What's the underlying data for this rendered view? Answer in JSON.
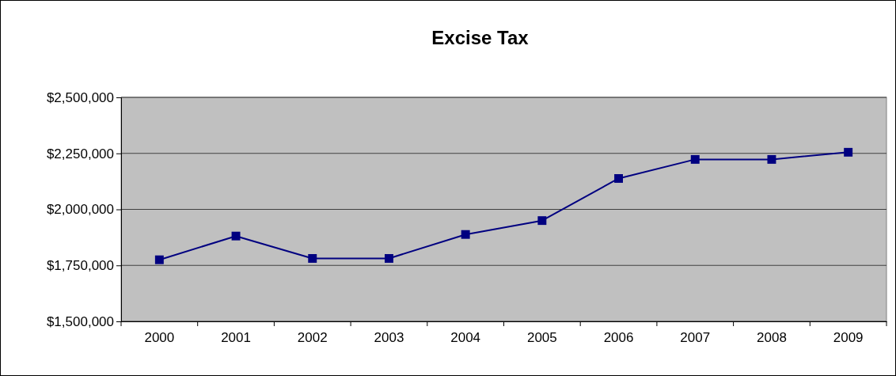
{
  "chart_data": {
    "type": "line",
    "title": "Excise Tax",
    "categories": [
      "2000",
      "2001",
      "2002",
      "2003",
      "2004",
      "2005",
      "2006",
      "2007",
      "2008",
      "2009"
    ],
    "series": [
      {
        "color": "#000080",
        "values": [
          1775000,
          1881000,
          1781000,
          1781000,
          1888000,
          1950000,
          2138000,
          2223000,
          2223000,
          2255000
        ]
      }
    ],
    "ylim": [
      1500000,
      2500000
    ],
    "yticks": [
      {
        "value": 1500000,
        "label": "$1,500,000"
      },
      {
        "value": 1750000,
        "label": "$1,750,000"
      },
      {
        "value": 2000000,
        "label": "$2,000,000"
      },
      {
        "value": 2250000,
        "label": "$2,250,000"
      },
      {
        "value": 2500000,
        "label": "$2,500,000"
      }
    ],
    "grid": "y",
    "marker": "square",
    "line_style": "solid"
  }
}
